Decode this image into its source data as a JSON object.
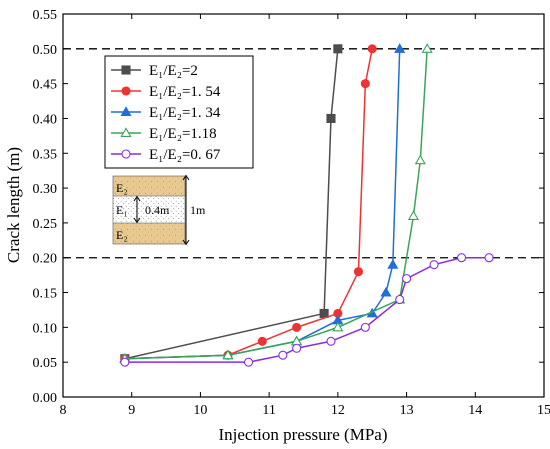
{
  "chart_data": {
    "type": "line",
    "xlabel": "Injection pressure (MPa)",
    "ylabel": "Crack length (m)",
    "xlim": [
      8,
      15
    ],
    "ylim": [
      0,
      0.55
    ],
    "xticks": [
      8,
      9,
      10,
      11,
      12,
      13,
      14,
      15
    ],
    "yticks": [
      0.0,
      0.05,
      0.1,
      0.15,
      0.2,
      0.25,
      0.3,
      0.35,
      0.4,
      0.45,
      0.5,
      0.55
    ],
    "xtick_labels": [
      "8",
      "9",
      "10",
      "11",
      "12",
      "13",
      "14",
      "15"
    ],
    "ytick_labels": [
      "0.00",
      "0.05",
      "0.10",
      "0.15",
      "0.20",
      "0.25",
      "0.30",
      "0.35",
      "0.40",
      "0.45",
      "0.50",
      "0.55"
    ],
    "grid": false,
    "legend_position": "top-left",
    "reference_lines": [
      0.5,
      0.2
    ],
    "series": [
      {
        "name": "E₁/E₂=2",
        "color": "#4d4d4d",
        "marker": "square",
        "filled": true,
        "x": [
          8.9,
          11.8,
          11.9,
          12.0
        ],
        "y": [
          0.055,
          0.12,
          0.4,
          0.5
        ]
      },
      {
        "name": "E₁/E₂=1. 54",
        "color": "#ee3333",
        "marker": "circle",
        "filled": true,
        "x": [
          8.9,
          10.4,
          10.9,
          11.4,
          12.0,
          12.3,
          12.4,
          12.5
        ],
        "y": [
          0.055,
          0.06,
          0.08,
          0.1,
          0.12,
          0.18,
          0.45,
          0.5
        ]
      },
      {
        "name": "E₁/E₂=1. 34",
        "color": "#1f6fd6",
        "marker": "triangle",
        "filled": true,
        "x": [
          8.9,
          10.4,
          11.4,
          12.0,
          12.5,
          12.7,
          12.8,
          12.9
        ],
        "y": [
          0.055,
          0.06,
          0.08,
          0.11,
          0.12,
          0.15,
          0.19,
          0.5
        ]
      },
      {
        "name": "E₁/E₂=1.18",
        "color": "#3aa55a",
        "marker": "triangle",
        "filled": false,
        "x": [
          8.9,
          10.4,
          11.4,
          12.0,
          12.9,
          13.1,
          13.2,
          13.3
        ],
        "y": [
          0.055,
          0.06,
          0.08,
          0.1,
          0.14,
          0.26,
          0.34,
          0.5
        ]
      },
      {
        "name": "E₁/E₂=0. 67",
        "color": "#8a2be2",
        "marker": "circle",
        "filled": false,
        "x": [
          8.9,
          10.7,
          11.2,
          11.4,
          11.9,
          12.4,
          12.9,
          13.0,
          13.4,
          13.8,
          14.2
        ],
        "y": [
          0.05,
          0.05,
          0.06,
          0.07,
          0.08,
          0.1,
          0.14,
          0.17,
          0.19,
          0.2,
          0.2
        ]
      }
    ],
    "inset": {
      "top_layer": "E₂",
      "middle_layer": "E₁",
      "bottom_layer": "E₂",
      "middle_height_label": "0.4m",
      "total_height_label": "1m"
    }
  }
}
